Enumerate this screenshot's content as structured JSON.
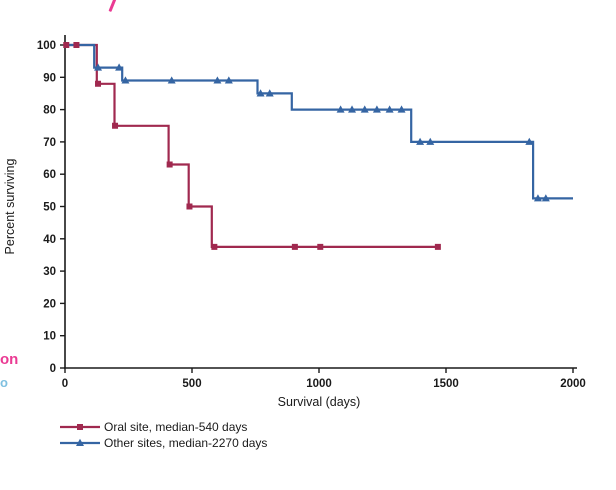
{
  "page": {
    "background": "#ffffff",
    "accent_pink": "#ea3a93",
    "accent_lightblue": "#7fc0e0"
  },
  "fragments": {
    "left_top": {
      "text": "on",
      "color": "#ea3a93"
    },
    "left_bottom": {
      "text": "o",
      "color": "#7fc0e0"
    }
  },
  "chart_data": {
    "type": "line",
    "subtype": "kaplan-meier-step",
    "title": "",
    "xlabel": "Survival (days)",
    "ylabel": "Percent surviving",
    "xlim": [
      0,
      2000
    ],
    "ylim": [
      0,
      100
    ],
    "xticks": [
      0,
      500,
      1000,
      1500,
      2000
    ],
    "yticks": [
      0,
      10,
      20,
      30,
      40,
      50,
      60,
      70,
      80,
      90,
      100
    ],
    "grid": false,
    "legend_position": "bottom-left",
    "series": [
      {
        "name": "Oral site, median-540 days",
        "color": "#a0294f",
        "marker": "square",
        "steps": [
          [
            0,
            100
          ],
          [
            125,
            88
          ],
          [
            195,
            75
          ],
          [
            408,
            63
          ],
          [
            487,
            50
          ],
          [
            578,
            37.5
          ]
        ],
        "end_x": 1475,
        "censor_marks": [
          [
            5,
            100
          ],
          [
            45,
            100
          ],
          [
            130,
            88
          ],
          [
            197,
            75
          ],
          [
            412,
            63
          ],
          [
            490,
            50
          ],
          [
            588,
            37.5
          ],
          [
            905,
            37.5
          ],
          [
            1005,
            37.5
          ],
          [
            1468,
            37.5
          ]
        ]
      },
      {
        "name": "Other sites, median-2270 days",
        "color": "#3565a3",
        "marker": "triangle",
        "steps": [
          [
            0,
            100
          ],
          [
            115,
            93
          ],
          [
            225,
            89
          ],
          [
            758,
            85
          ],
          [
            893,
            80
          ],
          [
            1363,
            70
          ],
          [
            1843,
            52.5
          ]
        ],
        "end_x": 2000,
        "censor_marks": [
          [
            130,
            93
          ],
          [
            213,
            93
          ],
          [
            238,
            89
          ],
          [
            420,
            89
          ],
          [
            600,
            89
          ],
          [
            645,
            89
          ],
          [
            770,
            85
          ],
          [
            806,
            85
          ],
          [
            1085,
            80
          ],
          [
            1130,
            80
          ],
          [
            1180,
            80
          ],
          [
            1228,
            80
          ],
          [
            1278,
            80
          ],
          [
            1325,
            80
          ],
          [
            1398,
            70
          ],
          [
            1438,
            70
          ],
          [
            1828,
            70
          ],
          [
            1862,
            52.5
          ],
          [
            1893,
            52.5
          ]
        ]
      }
    ]
  }
}
